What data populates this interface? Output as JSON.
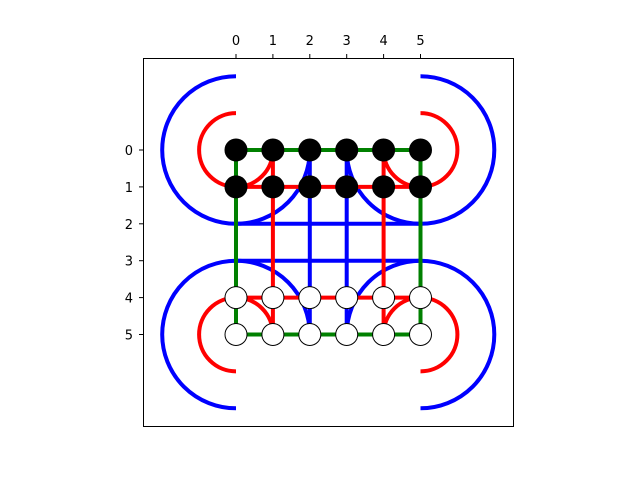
{
  "axes": {
    "x_tick_labels": [
      "0",
      "1",
      "2",
      "3",
      "4",
      "5"
    ],
    "y_tick_labels": [
      "0",
      "1",
      "2",
      "3",
      "4",
      "5"
    ],
    "x_ticks_position": "top",
    "x_range": [
      -2.5,
      7.5
    ],
    "y_range": [
      -2.5,
      7.5
    ],
    "y_inverted": true,
    "grid": false
  },
  "colors": {
    "blue": "#0000ff",
    "red": "#ff0000",
    "green": "#008000",
    "filled_node": "#000000",
    "hollow_node": "#ffffff"
  },
  "diagram": {
    "node_rows": [
      {
        "row": 0,
        "columns": [
          0,
          1,
          2,
          3,
          4,
          5
        ],
        "style": "filled"
      },
      {
        "row": 1,
        "columns": [
          0,
          1,
          2,
          3,
          4,
          5
        ],
        "style": "filled"
      },
      {
        "row": 4,
        "columns": [
          0,
          1,
          2,
          3,
          4,
          5
        ],
        "style": "hollow"
      },
      {
        "row": 5,
        "columns": [
          0,
          1,
          2,
          3,
          4,
          5
        ],
        "style": "hollow"
      }
    ],
    "edges": [
      {
        "color": "green",
        "from": [
          0,
          0
        ],
        "to": [
          5,
          0
        ]
      },
      {
        "color": "red",
        "from": [
          0,
          1
        ],
        "to": [
          5,
          1
        ]
      },
      {
        "color": "red",
        "from": [
          0,
          4
        ],
        "to": [
          5,
          4
        ]
      },
      {
        "color": "green",
        "from": [
          0,
          5
        ],
        "to": [
          5,
          5
        ]
      },
      {
        "color": "blue",
        "from": [
          0,
          2
        ],
        "to": [
          5,
          2
        ]
      },
      {
        "color": "blue",
        "from": [
          0,
          3
        ],
        "to": [
          5,
          3
        ]
      },
      {
        "color": "green",
        "from": [
          0,
          0
        ],
        "to": [
          0,
          5
        ]
      },
      {
        "color": "red",
        "from": [
          1,
          0
        ],
        "to": [
          1,
          5
        ]
      },
      {
        "color": "blue",
        "from": [
          2,
          0
        ],
        "to": [
          2,
          5
        ]
      },
      {
        "color": "blue",
        "from": [
          3,
          0
        ],
        "to": [
          3,
          5
        ]
      },
      {
        "color": "red",
        "from": [
          4,
          0
        ],
        "to": [
          4,
          5
        ]
      },
      {
        "color": "green",
        "from": [
          5,
          0
        ],
        "to": [
          5,
          5
        ]
      }
    ],
    "arcs": [
      {
        "color": "red",
        "center": [
          0,
          0
        ],
        "radius": 1,
        "from_deg": 0,
        "to_deg": 270
      },
      {
        "color": "red",
        "center": [
          5,
          0
        ],
        "radius": 1,
        "from_deg": -90,
        "to_deg": 180
      },
      {
        "color": "red",
        "center": [
          0,
          5
        ],
        "radius": 1,
        "from_deg": 90,
        "to_deg": 360
      },
      {
        "color": "red",
        "center": [
          5,
          5
        ],
        "radius": 1,
        "from_deg": 180,
        "to_deg": 450
      },
      {
        "color": "blue",
        "center": [
          0,
          0
        ],
        "radius": 2,
        "from_deg": 0,
        "to_deg": 270
      },
      {
        "color": "blue",
        "center": [
          5,
          0
        ],
        "radius": 2,
        "from_deg": -90,
        "to_deg": 180
      },
      {
        "color": "blue",
        "center": [
          0,
          5
        ],
        "radius": 2,
        "from_deg": 90,
        "to_deg": 360
      },
      {
        "color": "blue",
        "center": [
          5,
          5
        ],
        "radius": 2,
        "from_deg": 180,
        "to_deg": 450
      }
    ]
  }
}
